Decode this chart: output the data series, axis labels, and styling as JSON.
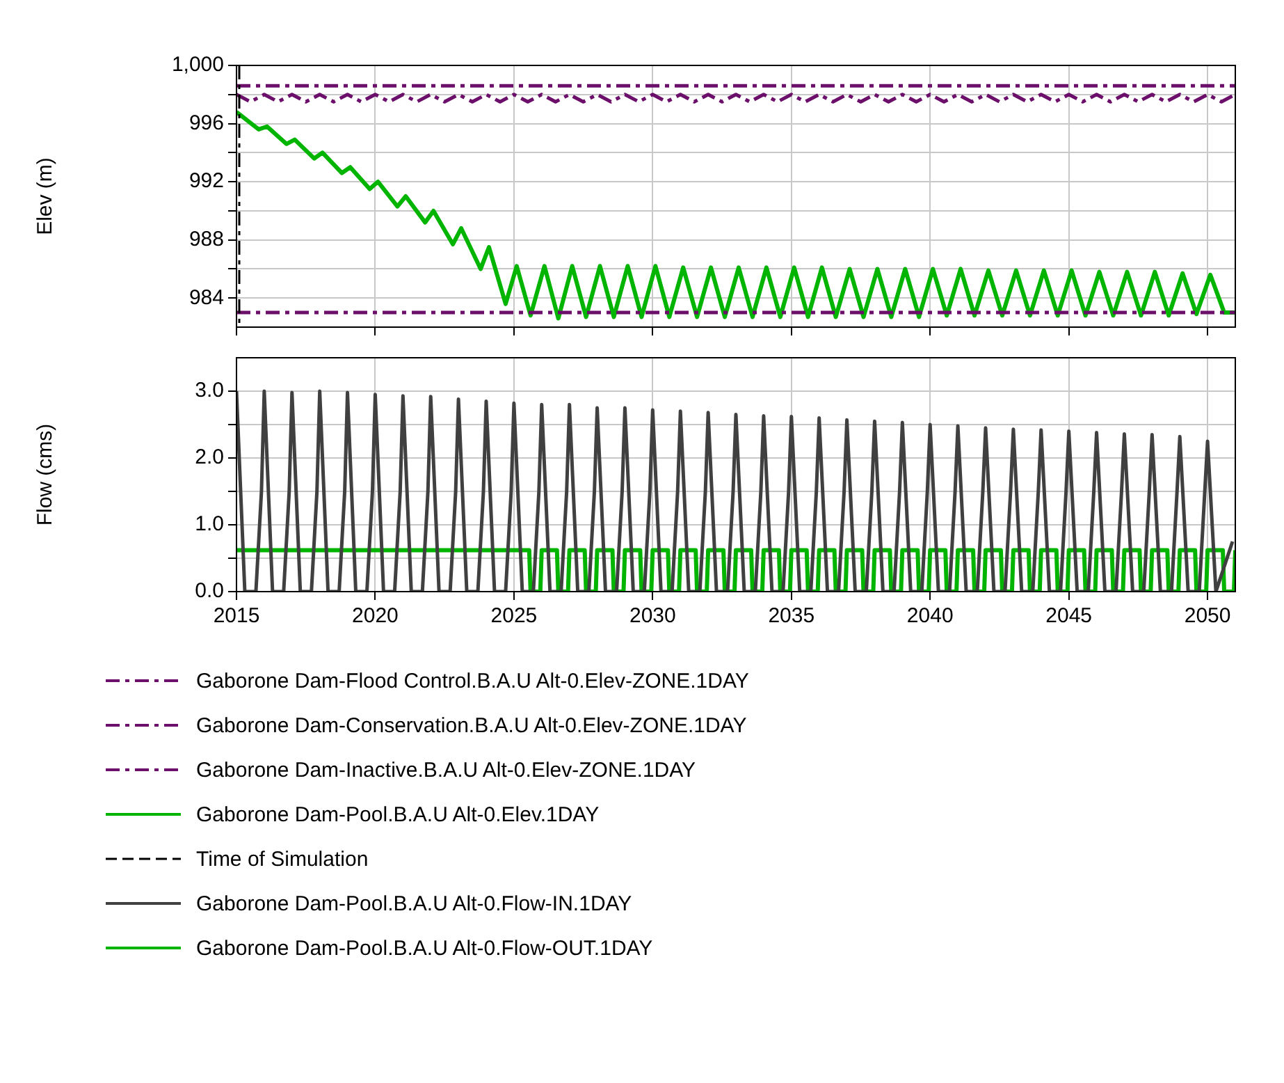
{
  "chart_data": [
    {
      "type": "line",
      "ylabel": "Elev (m)",
      "xlim": [
        2015,
        2051
      ],
      "xticks": [
        2015,
        2020,
        2025,
        2030,
        2035,
        2040,
        2045,
        2050
      ],
      "ylim": [
        982,
        1000
      ],
      "yticks": [
        984,
        {
          "value": 986,
          "label": null
        },
        988,
        {
          "value": 990,
          "label": null
        },
        992,
        {
          "value": 994,
          "label": null
        },
        996,
        {
          "value": 998,
          "label": null
        },
        {
          "value": 1000,
          "label": "1,000"
        }
      ],
      "grid": true,
      "legend": "bottom",
      "tick_labels": "y",
      "ref_lines": [
        {
          "axis": "x",
          "value": 2015,
          "label": "Time of Simulation",
          "color": "#000000",
          "line_style": "dashed"
        }
      ],
      "series": [
        {
          "name": "Gaborone Dam-Flood Control.B.A.U Alt-0.Elev-ZONE.1DAY",
          "color": "#6b0f6b",
          "line_style": "dashed",
          "x": [
            2015,
            2051
          ],
          "values": [
            998.6,
            998.6
          ]
        },
        {
          "name": "Gaborone Dam-Conservation.B.A.U Alt-0.Elev-ZONE.1DAY",
          "color": "#6b0f6b",
          "line_style": "dashed",
          "x": [
            2015,
            2015.5,
            2016,
            2016.5,
            2017,
            2017.5,
            2018,
            2018.5,
            2019,
            2019.5,
            2020,
            2020.5,
            2021,
            2021.5,
            2022,
            2022.5,
            2023,
            2023.5,
            2024,
            2024.5,
            2025,
            2025.5,
            2026,
            2026.5,
            2027,
            2027.5,
            2028,
            2028.5,
            2029,
            2029.5,
            2030,
            2030.5,
            2031,
            2031.5,
            2032,
            2032.5,
            2033,
            2033.5,
            2034,
            2034.5,
            2035,
            2035.5,
            2036,
            2036.5,
            2037,
            2037.5,
            2038,
            2038.5,
            2039,
            2039.5,
            2040,
            2040.5,
            2041,
            2041.5,
            2042,
            2042.5,
            2043,
            2043.5,
            2044,
            2044.5,
            2045,
            2045.5,
            2046,
            2046.5,
            2047,
            2047.5,
            2048,
            2048.5,
            2049,
            2049.5,
            2050,
            2050.5,
            2051
          ],
          "values": [
            998.0,
            997.5,
            998.0,
            997.5,
            998.0,
            997.5,
            998.0,
            997.5,
            998.0,
            997.5,
            998.0,
            997.5,
            998.0,
            997.5,
            998.0,
            997.5,
            998.0,
            997.5,
            998.0,
            997.5,
            998.0,
            997.5,
            998.0,
            997.5,
            998.0,
            997.5,
            998.0,
            997.5,
            998.0,
            997.5,
            998.0,
            997.5,
            998.0,
            997.5,
            998.0,
            997.5,
            998.0,
            997.5,
            998.0,
            997.5,
            998.0,
            997.5,
            998.0,
            997.5,
            998.0,
            997.5,
            998.0,
            997.5,
            998.0,
            997.5,
            998.0,
            997.5,
            998.0,
            997.5,
            998.0,
            997.5,
            998.0,
            997.5,
            998.0,
            997.5,
            998.0,
            997.5,
            998.0,
            997.5,
            998.0,
            997.5,
            998.0,
            997.5,
            998.0,
            997.5,
            998.0,
            997.5,
            998.0
          ]
        },
        {
          "name": "Gaborone Dam-Inactive.B.A.U Alt-0.Elev-ZONE.1DAY",
          "color": "#6b0f6b",
          "line_style": "dashed",
          "x": [
            2015,
            2051
          ],
          "values": [
            983.0,
            983.0
          ]
        },
        {
          "name": "Gaborone Dam-Pool.B.A.U Alt-0.Elev.1DAY",
          "color": "#00b400",
          "line_style": "solid",
          "x": [
            2015.0,
            2015.8,
            2016.1,
            2016.8,
            2017.1,
            2017.8,
            2018.1,
            2018.8,
            2019.1,
            2019.8,
            2020.1,
            2020.8,
            2021.1,
            2021.8,
            2022.1,
            2022.8,
            2023.1,
            2023.8,
            2024.1,
            2024.7,
            2025.1,
            2025.6,
            2026.1,
            2026.6,
            2027.1,
            2027.6,
            2028.1,
            2028.6,
            2029.1,
            2029.6,
            2030.1,
            2030.6,
            2031.1,
            2031.6,
            2032.1,
            2032.6,
            2033.1,
            2033.6,
            2034.1,
            2034.6,
            2035.1,
            2035.6,
            2036.1,
            2036.6,
            2037.1,
            2037.6,
            2038.1,
            2038.6,
            2039.1,
            2039.6,
            2040.1,
            2040.6,
            2041.1,
            2041.6,
            2042.1,
            2042.6,
            2043.1,
            2043.6,
            2044.1,
            2044.6,
            2045.1,
            2045.6,
            2046.1,
            2046.6,
            2047.1,
            2047.6,
            2048.1,
            2048.6,
            2049.1,
            2049.6,
            2050.1,
            2050.6,
            2051.0
          ],
          "values": [
            996.8,
            995.6,
            995.8,
            994.6,
            994.9,
            993.6,
            994.0,
            992.6,
            993.0,
            991.5,
            992.0,
            990.3,
            991.0,
            989.2,
            990.0,
            987.7,
            988.8,
            986.0,
            987.5,
            983.6,
            986.2,
            982.8,
            986.2,
            982.6,
            986.2,
            982.7,
            986.2,
            982.7,
            986.2,
            982.7,
            986.2,
            982.7,
            986.1,
            982.7,
            986.1,
            982.7,
            986.1,
            982.7,
            986.1,
            982.7,
            986.1,
            982.7,
            986.1,
            982.7,
            986.0,
            982.7,
            986.0,
            982.7,
            986.0,
            982.7,
            986.0,
            982.8,
            986.0,
            982.8,
            985.9,
            982.8,
            985.9,
            982.8,
            985.9,
            982.8,
            985.9,
            982.8,
            985.8,
            982.8,
            985.8,
            982.8,
            985.8,
            982.8,
            985.7,
            982.9,
            985.6,
            983.0,
            983.0
          ]
        }
      ]
    },
    {
      "type": "line",
      "ylabel": "Flow (cms)",
      "xlim": [
        2015,
        2051
      ],
      "xticks": [
        2015,
        2020,
        2025,
        2030,
        2035,
        2040,
        2045,
        2050
      ],
      "ylim": [
        0,
        3.5
      ],
      "yticks": [
        {
          "value": 0,
          "label": "0.0"
        },
        {
          "value": 0.5,
          "label": null
        },
        {
          "value": 1,
          "label": "1.0"
        },
        {
          "value": 1.5,
          "label": null
        },
        {
          "value": 2,
          "label": "2.0"
        },
        {
          "value": 2.5,
          "label": null
        },
        {
          "value": 3,
          "label": "3.0"
        }
      ],
      "grid": true,
      "legend": "bottom",
      "series": [
        {
          "name": "Gaborone Dam-Pool.B.A.U Alt-0.Flow-IN.1DAY",
          "color": "#404040",
          "line_style": "solid",
          "x": [
            2015.0,
            2015.3,
            2015.7,
            2015.9,
            2016.0,
            2016.3,
            2016.7,
            2016.9,
            2017.0,
            2017.3,
            2017.7,
            2017.9,
            2018.0,
            2018.3,
            2018.7,
            2018.9,
            2019.0,
            2019.3,
            2019.7,
            2019.9,
            2020.0,
            2020.3,
            2020.7,
            2020.9,
            2021.0,
            2021.3,
            2021.7,
            2021.9,
            2022.0,
            2022.3,
            2022.7,
            2022.9,
            2023.0,
            2023.3,
            2023.7,
            2023.9,
            2024.0,
            2024.3,
            2024.7,
            2024.9,
            2025.0,
            2025.3,
            2025.7,
            2025.9,
            2026.0,
            2026.3,
            2026.7,
            2026.9,
            2027.0,
            2027.3,
            2027.7,
            2027.9,
            2028.0,
            2028.3,
            2028.7,
            2028.9,
            2029.0,
            2029.3,
            2029.7,
            2029.9,
            2030.0,
            2030.3,
            2030.7,
            2030.9,
            2031.0,
            2031.3,
            2031.7,
            2031.9,
            2032.0,
            2032.3,
            2032.7,
            2032.9,
            2033.0,
            2033.3,
            2033.7,
            2033.9,
            2034.0,
            2034.3,
            2034.7,
            2034.9,
            2035.0,
            2035.3,
            2035.7,
            2035.9,
            2036.0,
            2036.3,
            2036.7,
            2036.9,
            2037.0,
            2037.3,
            2037.7,
            2037.9,
            2038.0,
            2038.3,
            2038.7,
            2038.9,
            2039.0,
            2039.3,
            2039.7,
            2039.9,
            2040.0,
            2040.3,
            2040.7,
            2040.9,
            2041.0,
            2041.3,
            2041.7,
            2041.9,
            2042.0,
            2042.3,
            2042.7,
            2042.9,
            2043.0,
            2043.3,
            2043.7,
            2043.9,
            2044.0,
            2044.3,
            2044.7,
            2044.9,
            2045.0,
            2045.3,
            2045.7,
            2045.9,
            2046.0,
            2046.3,
            2046.7,
            2046.9,
            2047.0,
            2047.3,
            2047.7,
            2047.9,
            2048.0,
            2048.3,
            2048.7,
            2048.9,
            2049.0,
            2049.3,
            2049.7,
            2049.9,
            2050.0,
            2050.3,
            2050.9
          ],
          "values": [
            3.0,
            0,
            0,
            1.5,
            3.0,
            0,
            0,
            1.5,
            2.98,
            0,
            0,
            1.5,
            3.0,
            0,
            0,
            1.5,
            2.98,
            0,
            0,
            1.5,
            2.95,
            0,
            0,
            1.5,
            2.93,
            0,
            0,
            1.5,
            2.92,
            0,
            0,
            1.5,
            2.88,
            0,
            0,
            1.5,
            2.85,
            0,
            0,
            1.5,
            2.82,
            0,
            0,
            1.5,
            2.8,
            0,
            0,
            1.5,
            2.8,
            0,
            0,
            1.5,
            2.75,
            0,
            0,
            1.5,
            2.75,
            0,
            0,
            1.5,
            2.72,
            0,
            0,
            1.5,
            2.7,
            0,
            0,
            1.5,
            2.68,
            0,
            0,
            1.5,
            2.65,
            0,
            0,
            1.5,
            2.63,
            0,
            0,
            1.5,
            2.62,
            0,
            0,
            1.5,
            2.6,
            0,
            0,
            1.5,
            2.57,
            0,
            0,
            1.5,
            2.55,
            0,
            0,
            1.5,
            2.53,
            0,
            0,
            1.5,
            2.5,
            0,
            0,
            1.5,
            2.48,
            0,
            0,
            1.5,
            2.45,
            0,
            0,
            1.5,
            2.43,
            0,
            0,
            1.5,
            2.42,
            0,
            0,
            1.5,
            2.4,
            0,
            0,
            1.5,
            2.38,
            0,
            0,
            1.5,
            2.36,
            0,
            0,
            1.5,
            2.35,
            0,
            0,
            1.5,
            2.32,
            0,
            0,
            1.5,
            2.25,
            0,
            0.75
          ]
        },
        {
          "name": "Gaborone Dam-Pool.B.A.U Alt-0.Flow-OUT.1DAY",
          "color": "#00b400",
          "line_style": "solid",
          "x": [
            2015.0,
            2025.55,
            2025.6,
            2025.95,
            2026.0,
            2026.55,
            2026.6,
            2026.95,
            2027.0,
            2027.55,
            2027.6,
            2027.95,
            2028.0,
            2028.55,
            2028.6,
            2028.95,
            2029.0,
            2029.55,
            2029.6,
            2029.95,
            2030.0,
            2030.55,
            2030.6,
            2030.95,
            2031.0,
            2031.55,
            2031.6,
            2031.95,
            2032.0,
            2032.55,
            2032.6,
            2032.95,
            2033.0,
            2033.55,
            2033.6,
            2033.95,
            2034.0,
            2034.55,
            2034.6,
            2034.95,
            2035.0,
            2035.55,
            2035.6,
            2035.95,
            2036.0,
            2036.55,
            2036.6,
            2036.95,
            2037.0,
            2037.55,
            2037.6,
            2037.95,
            2038.0,
            2038.55,
            2038.6,
            2038.95,
            2039.0,
            2039.55,
            2039.6,
            2039.95,
            2040.0,
            2040.55,
            2040.6,
            2040.95,
            2041.0,
            2041.55,
            2041.6,
            2041.95,
            2042.0,
            2042.55,
            2042.6,
            2042.95,
            2043.0,
            2043.55,
            2043.6,
            2043.95,
            2044.0,
            2044.55,
            2044.6,
            2044.95,
            2045.0,
            2045.55,
            2045.6,
            2045.95,
            2046.0,
            2046.55,
            2046.6,
            2046.95,
            2047.0,
            2047.55,
            2047.6,
            2047.95,
            2048.0,
            2048.55,
            2048.6,
            2048.95,
            2049.0,
            2049.55,
            2049.6,
            2049.95,
            2050.0,
            2050.55,
            2050.6,
            2050.95,
            2051.0
          ],
          "values": [
            0.62,
            0.62,
            0,
            0,
            0.62,
            0.62,
            0,
            0,
            0.62,
            0.62,
            0,
            0,
            0.62,
            0.62,
            0,
            0,
            0.62,
            0.62,
            0,
            0,
            0.62,
            0.62,
            0,
            0,
            0.62,
            0.62,
            0,
            0,
            0.62,
            0.62,
            0,
            0,
            0.62,
            0.62,
            0,
            0,
            0.62,
            0.62,
            0,
            0,
            0.62,
            0.62,
            0,
            0,
            0.62,
            0.62,
            0,
            0,
            0.62,
            0.62,
            0,
            0,
            0.62,
            0.62,
            0,
            0,
            0.62,
            0.62,
            0,
            0,
            0.62,
            0.62,
            0,
            0,
            0.62,
            0.62,
            0,
            0,
            0.62,
            0.62,
            0,
            0,
            0.62,
            0.62,
            0,
            0,
            0.62,
            0.62,
            0,
            0,
            0.62,
            0.62,
            0,
            0,
            0.62,
            0.62,
            0,
            0,
            0.62,
            0.62,
            0,
            0,
            0.62,
            0.62,
            0,
            0,
            0.62,
            0.62,
            0,
            0,
            0.62,
            0.62,
            0,
            0,
            0.62
          ]
        }
      ]
    }
  ]
}
